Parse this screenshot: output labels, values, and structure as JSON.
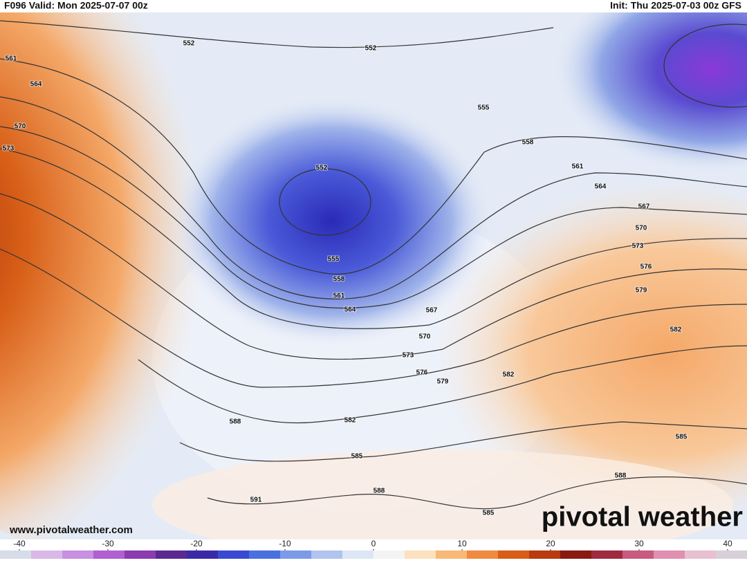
{
  "header": {
    "left": "F096 Valid: Mon 2025-07-07 00z",
    "right": "Init: Thu 2025-07-03 00z GFS"
  },
  "contour_labels": [
    "552",
    "552",
    "561",
    "564",
    "570",
    "573",
    "552",
    "555",
    "558",
    "561",
    "564",
    "567",
    "570",
    "573",
    "576",
    "579",
    "555",
    "558",
    "561",
    "564",
    "567",
    "570",
    "573",
    "576",
    "579",
    "582",
    "582",
    "588",
    "582",
    "585",
    "585",
    "588",
    "591",
    "588",
    "585"
  ],
  "watermark": "www.pivotalweather.com",
  "logo": "pivotal weather",
  "colorbar": {
    "range": [
      -40,
      40
    ],
    "ticks": [
      -40,
      -30,
      -20,
      -10,
      0,
      10,
      20,
      30,
      40
    ],
    "colors": [
      "#d6dce8",
      "#d9b8e8",
      "#c890e0",
      "#b060d0",
      "#8a3cb0",
      "#5a2a90",
      "#3b2aa8",
      "#3a4ad0",
      "#4a70e0",
      "#7c9ae8",
      "#b0c4ee",
      "#dde6f4",
      "#f4f4f4",
      "#fde0c0",
      "#f8b878",
      "#f08a40",
      "#d85e18",
      "#b83a10",
      "#8a1a10",
      "#a02a40",
      "#c85a80",
      "#e090b0",
      "#e8c0d0",
      "#d8d0d8"
    ]
  }
}
